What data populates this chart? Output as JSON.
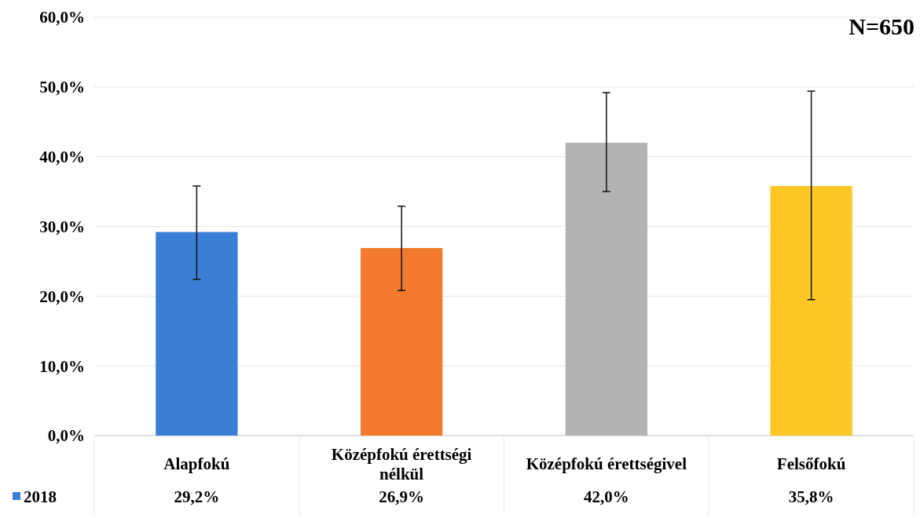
{
  "chart_data": {
    "type": "bar",
    "categories": [
      "Alapfokú",
      "Középfokú érettségi nélkül",
      "Középfokú érettségivel",
      "Felsőfokú"
    ],
    "series": [
      {
        "name": "2018",
        "color": "#3a7fd5",
        "colors": [
          "#3a7fd5",
          "#f47b2e",
          "#b2b4b2",
          "#fdc827"
        ],
        "values": [
          29.2,
          26.9,
          42.0,
          35.8
        ],
        "value_labels": [
          "29,2%",
          "26,9%",
          "42,0%",
          "35,8%"
        ],
        "errors": [
          [
            22.4,
            35.8
          ],
          [
            20.8,
            32.9
          ],
          [
            35.0,
            49.2
          ],
          [
            19.5,
            49.4
          ]
        ]
      }
    ],
    "ylim": [
      0,
      60
    ],
    "yticks": [
      {
        "value": 0,
        "label": "0,0%"
      },
      {
        "value": 10,
        "label": "10,0%"
      },
      {
        "value": 20,
        "label": "20,0%"
      },
      {
        "value": 30,
        "label": "30,0%"
      },
      {
        "value": 40,
        "label": "40,0%"
      },
      {
        "value": 50,
        "label": "50,0%"
      },
      {
        "value": 60,
        "label": "60,0%"
      }
    ],
    "grid": "y",
    "legend": "bottom",
    "annotations": [
      "N=650"
    ]
  }
}
